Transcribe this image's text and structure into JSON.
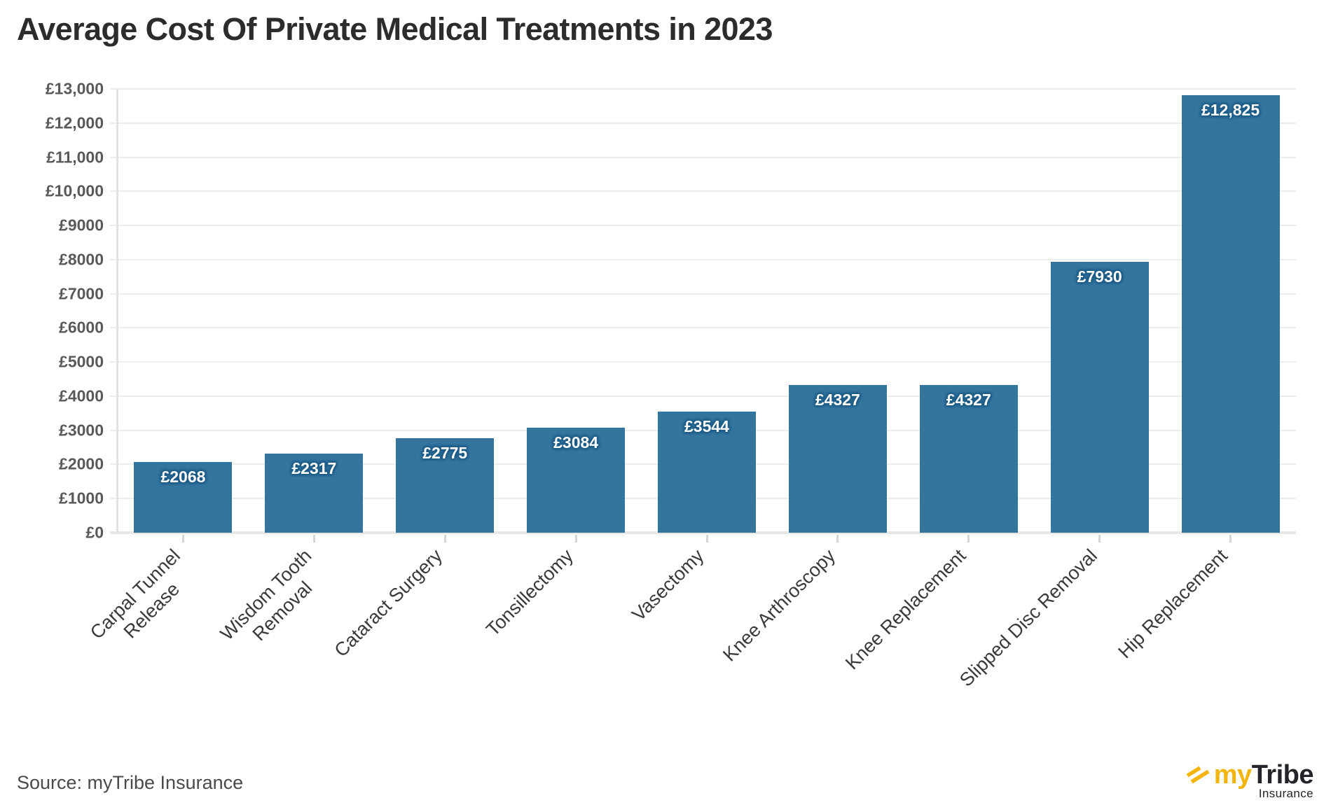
{
  "title": "Average Cost Of Private Medical Treatments in 2023",
  "source_note": "Source: myTribe Insurance",
  "logo": {
    "prefix": "my",
    "name": "Tribe",
    "tagline": "Insurance",
    "icon": "double-slash-arrows-icon",
    "accent_color": "#f2b50d",
    "dark_color": "#26232b"
  },
  "colors": {
    "bar": "#34759e",
    "bar_label_halo": "#1d5b85",
    "gridline": "#ededed",
    "axis_text": "#58595b",
    "category_text": "#3a3a3a",
    "title_text": "#2c2c2c"
  },
  "chart_data": {
    "type": "bar",
    "title": "Average Cost Of Private Medical Treatments in 2023",
    "categories": [
      "Carpal Tunnel\nRelease",
      "Wisdom Tooth\nRemoval",
      "Cataract Surgery",
      "Tonsillectomy",
      "Vasectomy",
      "Knee Arthroscopy",
      "Knee Replacement",
      "Slipped Disc Removal",
      "Hip Replacement"
    ],
    "values": [
      2068,
      2317,
      2775,
      3084,
      3544,
      4327,
      4327,
      7930,
      12825
    ],
    "bar_labels": [
      "£2068",
      "£2317",
      "£2775",
      "£3084",
      "£3544",
      "£4327",
      "£4327",
      "£7930",
      "£12,825"
    ],
    "xlabel": "",
    "ylabel": "",
    "ylim": [
      0,
      13000
    ],
    "y_tick_interval": 1000,
    "y_tick_labels": [
      "£0",
      "£1000",
      "£2000",
      "£3000",
      "£4000",
      "£5000",
      "£6000",
      "£7000",
      "£8000",
      "£9000",
      "£10,000",
      "£11,000",
      "£12,000",
      "£13,000"
    ],
    "grid": true,
    "legend": false,
    "currency": "GBP"
  }
}
